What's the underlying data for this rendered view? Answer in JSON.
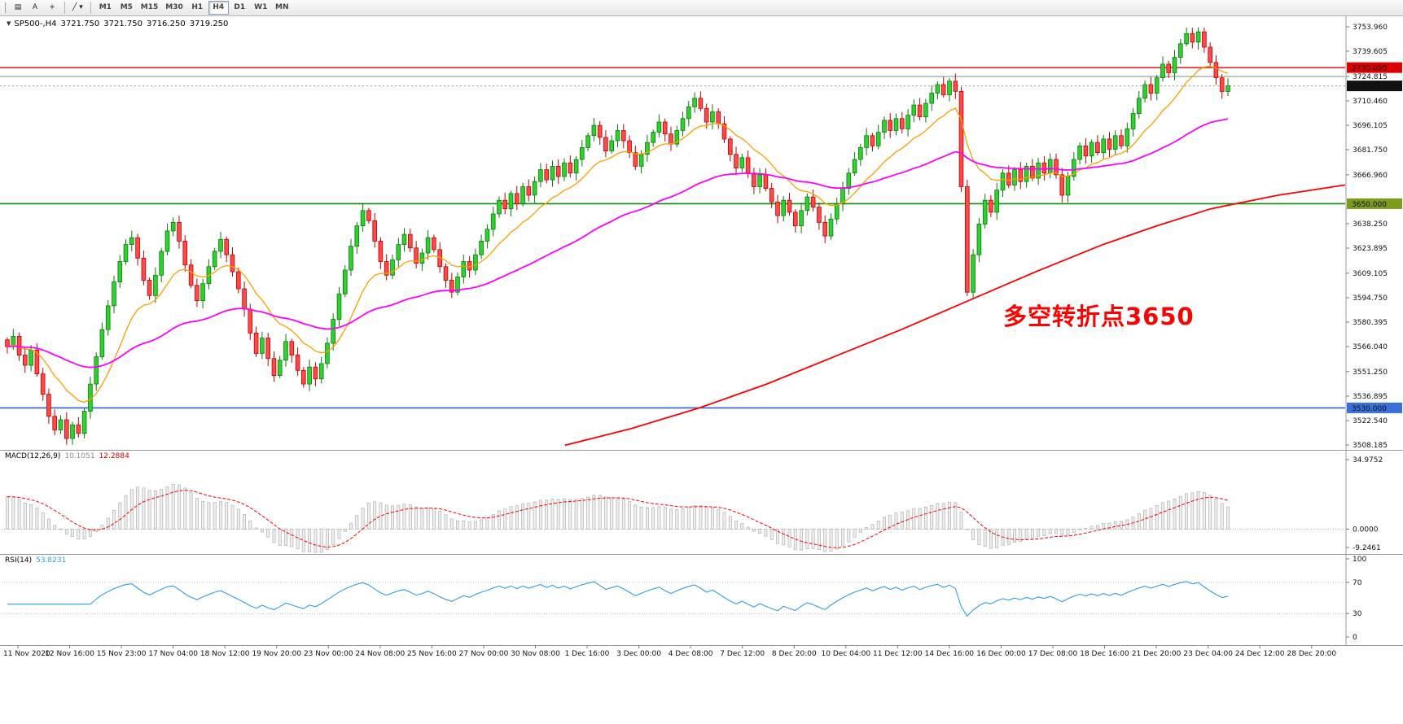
{
  "toolbar": {
    "tools": [
      {
        "name": "chart-tool",
        "label": "▤"
      },
      {
        "name": "text-tool",
        "label": "A"
      },
      {
        "name": "crosshair-tool",
        "label": "+"
      },
      {
        "name": "line-tool",
        "label": "╱ ▾"
      }
    ],
    "timeframes": [
      "M1",
      "M5",
      "M15",
      "M30",
      "H1",
      "H4",
      "D1",
      "W1",
      "MN"
    ],
    "active_timeframe": "H4"
  },
  "chart": {
    "header": {
      "expander": "▼",
      "symbol_period": "SP500-,H4",
      "open": "3721.750",
      "high": "3721.750",
      "low": "3716.250",
      "close": "3719.250"
    },
    "annotation": {
      "text": "多空转折点3650",
      "color": "#ff0000"
    },
    "price_axis": {
      "min": 3508.185,
      "max": 3753.96,
      "ticks": [
        "3753.960",
        "3739.605",
        "3724.815",
        "3710.460",
        "3696.105",
        "3681.750",
        "3666.960",
        "3638.250",
        "3623.895",
        "3609.105",
        "3594.750",
        "3580.395",
        "3566.040",
        "3551.250",
        "3536.895",
        "3522.540",
        "3508.185"
      ],
      "badges": [
        {
          "text": "3730.000",
          "price": 3730.0,
          "bg": "#dd0000",
          "fg": "#ffffff"
        },
        {
          "text": "3719.250",
          "price": 3719.25,
          "bg": "#111111",
          "fg": "#ffffff"
        },
        {
          "text": "3650.000",
          "price": 3650.0,
          "bg": "#7d9b1e",
          "fg": "#ffffff"
        },
        {
          "text": "3530.000",
          "price": 3530.0,
          "bg": "#3a6fd8",
          "fg": "#ffffff"
        }
      ]
    },
    "hlines": [
      {
        "price": 3730.0,
        "color": "#e00000",
        "width": 1.4,
        "style": "solid"
      },
      {
        "price": 3724.8,
        "color": "#8a8a8a",
        "width": 1.1,
        "style": "solid"
      },
      {
        "price": 3650.0,
        "color": "#089000",
        "width": 1.6,
        "style": "solid"
      },
      {
        "price": 3530.0,
        "color": "#2f62d8",
        "width": 1.6,
        "style": "solid"
      },
      {
        "price": 3719.25,
        "color": "#999999",
        "width": 1,
        "style": "dotted"
      }
    ],
    "moving_averages": {
      "fast": {
        "period": 13,
        "color": "#ff9d00"
      },
      "medium": {
        "period": 55,
        "color": "#ff00ff"
      },
      "slow": {
        "color": "#ff0000",
        "points": [
          [
            0.42,
            3508
          ],
          [
            0.47,
            3518
          ],
          [
            0.52,
            3530
          ],
          [
            0.57,
            3544
          ],
          [
            0.62,
            3560
          ],
          [
            0.67,
            3576
          ],
          [
            0.72,
            3593
          ],
          [
            0.77,
            3610
          ],
          [
            0.82,
            3626
          ],
          [
            0.86,
            3637
          ],
          [
            0.9,
            3647
          ],
          [
            0.95,
            3655
          ],
          [
            1.0,
            3661
          ]
        ]
      }
    },
    "candle_colors": {
      "up_fill": "#2fd12f",
      "up_border": "#0a7a0a",
      "down_fill": "#ff4a4a",
      "down_border": "#c00000"
    }
  },
  "indicators": {
    "macd": {
      "label": "MACD(12,26,9)",
      "values": [
        "10.1051",
        "12.2884"
      ],
      "axis": [
        "34.9752",
        "0.0000",
        "-9.2461"
      ],
      "max": 34.9752,
      "min": -9.2461,
      "fast": 12,
      "slow": 26,
      "signal": 9,
      "hist_fill": "#efefef",
      "hist_border": "#b0b0b0",
      "signal_color": "#ff0000"
    },
    "rsi": {
      "label": "RSI(14)",
      "value": "53.8231",
      "period": 14,
      "axis": [
        "100",
        "70",
        "30",
        "0"
      ],
      "levels": [
        70,
        30
      ],
      "line_color": "#2e9fe6"
    }
  },
  "chart_data": {
    "type": "candlestick",
    "symbol": "SP500-",
    "period": "H4",
    "ohlc_current": {
      "open": 3721.75,
      "high": 3721.75,
      "low": 3716.25,
      "close": 3719.25
    },
    "y_range": [
      3508.185,
      3753.96
    ],
    "first_open": 3570,
    "closes": [
      3566,
      3572,
      3561,
      3555,
      3564,
      3550,
      3538,
      3525,
      3517,
      3523,
      3512,
      3520,
      3515,
      3528,
      3544,
      3560,
      3576,
      3590,
      3604,
      3616,
      3626,
      3630,
      3618,
      3605,
      3596,
      3608,
      3622,
      3634,
      3639,
      3628,
      3614,
      3602,
      3593,
      3603,
      3613,
      3622,
      3629,
      3620,
      3610,
      3600,
      3588,
      3574,
      3562,
      3571,
      3559,
      3549,
      3558,
      3569,
      3561,
      3552,
      3544,
      3554,
      3547,
      3556,
      3568,
      3582,
      3597,
      3611,
      3625,
      3637,
      3646,
      3640,
      3628,
      3616,
      3608,
      3617,
      3626,
      3632,
      3624,
      3615,
      3621,
      3630,
      3623,
      3613,
      3605,
      3598,
      3607,
      3616,
      3611,
      3620,
      3628,
      3635,
      3644,
      3652,
      3647,
      3656,
      3650,
      3660,
      3655,
      3663,
      3670,
      3664,
      3672,
      3666,
      3674,
      3668,
      3676,
      3683,
      3690,
      3696,
      3689,
      3681,
      3687,
      3693,
      3687,
      3680,
      3672,
      3679,
      3686,
      3692,
      3698,
      3691,
      3685,
      3693,
      3700,
      3707,
      3712,
      3706,
      3698,
      3704,
      3697,
      3688,
      3679,
      3671,
      3677,
      3668,
      3660,
      3667,
      3659,
      3651,
      3643,
      3652,
      3645,
      3637,
      3646,
      3654,
      3648,
      3639,
      3631,
      3641,
      3650,
      3659,
      3668,
      3676,
      3683,
      3690,
      3684,
      3692,
      3699,
      3693,
      3700,
      3694,
      3702,
      3708,
      3701,
      3709,
      3715,
      3720,
      3714,
      3722,
      3716,
      3660,
      3598,
      3620,
      3638,
      3652,
      3645,
      3658,
      3668,
      3661,
      3670,
      3663,
      3672,
      3665,
      3674,
      3668,
      3676,
      3667,
      3655,
      3666,
      3676,
      3684,
      3678,
      3686,
      3680,
      3688,
      3682,
      3690,
      3684,
      3694,
      3703,
      3712,
      3720,
      3715,
      3724,
      3732,
      3727,
      3736,
      3744,
      3750,
      3745,
      3751,
      3742,
      3733,
      3724,
      3716,
      3719.25
    ],
    "x_labels": [
      "11 Nov 2020",
      "12 Nov 16:00",
      "15 Nov 23:00",
      "17 Nov 04:00",
      "18 Nov 12:00",
      "19 Nov 20:00",
      "23 Nov 00:00",
      "24 Nov 08:00",
      "25 Nov 16:00",
      "27 Nov 00:00",
      "30 Nov 08:00",
      "1 Dec 16:00",
      "3 Dec 00:00",
      "4 Dec 08:00",
      "7 Dec 12:00",
      "8 Dec 20:00",
      "10 Dec 04:00",
      "11 Dec 12:00",
      "14 Dec 16:00",
      "16 Dec 00:00",
      "17 Dec 08:00",
      "18 Dec 16:00",
      "21 Dec 20:00",
      "23 Dec 04:00",
      "24 Dec 12:00",
      "28 Dec 20:00"
    ]
  }
}
